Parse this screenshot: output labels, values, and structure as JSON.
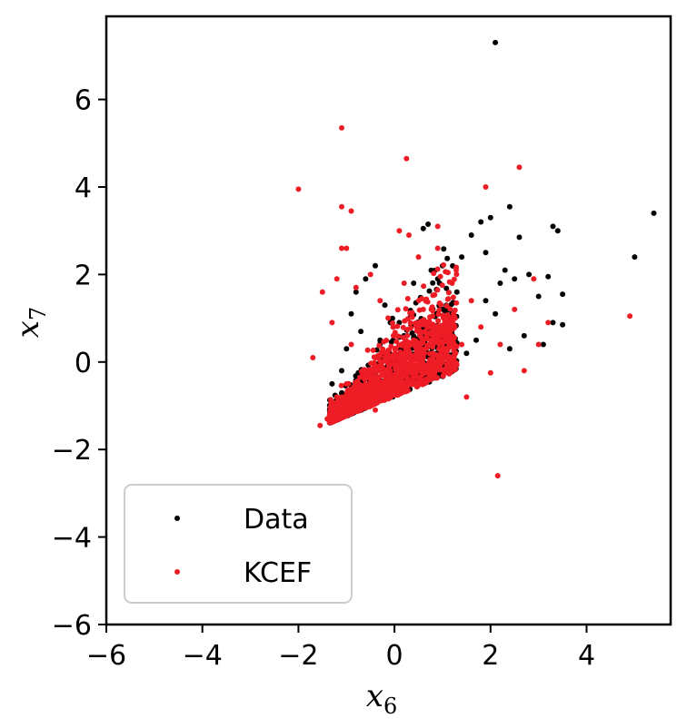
{
  "chart_data": {
    "type": "scatter",
    "title": "",
    "xlabel": "x",
    "xlabel_sub": "6",
    "ylabel": "x",
    "ylabel_sub": "7",
    "xlim": [
      -6,
      5.75
    ],
    "ylim": [
      -6,
      7.9
    ],
    "xticks": [
      -6,
      -4,
      -2,
      0,
      2,
      4
    ],
    "yticks": [
      -6,
      -4,
      -2,
      0,
      2,
      4,
      6
    ],
    "xtick_labels": [
      "−6",
      "−4",
      "−2",
      "0",
      "2",
      "4"
    ],
    "ytick_labels": [
      "−6",
      "−4",
      "−2",
      "0",
      "2",
      "4",
      "6"
    ],
    "grid": false,
    "legend_position": "lower-left",
    "series": [
      {
        "name": "Data",
        "color": "#000000",
        "points": [
          [
            2.1,
            7.3
          ],
          [
            5.4,
            3.4
          ],
          [
            5.0,
            2.4
          ],
          [
            3.4,
            3.0
          ],
          [
            3.3,
            3.1
          ],
          [
            2.4,
            3.55
          ],
          [
            3.5,
            1.55
          ],
          [
            3.5,
            0.85
          ],
          [
            3.2,
            1.95
          ],
          [
            3.1,
            0.4
          ],
          [
            3.3,
            0.9
          ],
          [
            2.6,
            2.85
          ],
          [
            2.8,
            2.0
          ],
          [
            2.2,
            1.8
          ],
          [
            2.0,
            3.3
          ],
          [
            1.8,
            3.2
          ],
          [
            0.7,
            3.15
          ],
          [
            0.6,
            3.05
          ],
          [
            1.6,
            2.9
          ],
          [
            1.4,
            2.4
          ],
          [
            1.0,
            2.2
          ],
          [
            0.9,
            1.9
          ],
          [
            1.9,
            1.4
          ],
          [
            2.1,
            1.1
          ],
          [
            2.4,
            0.3
          ],
          [
            2.7,
            0.6
          ],
          [
            1.2,
            1.0
          ],
          [
            0.8,
            1.2
          ],
          [
            -0.4,
            2.2
          ],
          [
            -0.6,
            1.9
          ],
          [
            -0.8,
            1.6
          ],
          [
            -0.2,
            1.3
          ],
          [
            0.1,
            0.9
          ],
          [
            0.5,
            0.7
          ],
          [
            1.5,
            0.2
          ],
          [
            1.7,
            0.5
          ],
          [
            -1.0,
            0.3
          ],
          [
            -1.3,
            -0.5
          ],
          [
            -1.1,
            -0.2
          ],
          [
            -0.9,
            -0.9
          ],
          [
            -0.5,
            -0.4
          ],
          [
            -0.2,
            -0.2
          ],
          [
            0.3,
            -0.1
          ],
          [
            0.8,
            0.0
          ],
          [
            1.1,
            0.3
          ],
          [
            -0.7,
            0.7
          ],
          [
            -0.3,
            0.5
          ],
          [
            0.2,
            0.3
          ],
          [
            1.3,
            1.6
          ],
          [
            2.5,
            1.9
          ],
          [
            3.0,
            1.5
          ],
          [
            0.4,
            1.8
          ],
          [
            -0.9,
            1.1
          ],
          [
            1.9,
            2.5
          ],
          [
            2.3,
            2.1
          ],
          [
            0.6,
            -0.3
          ],
          [
            1.0,
            -0.1
          ],
          [
            -1.2,
            -1.0
          ],
          [
            -0.6,
            -1.0
          ],
          [
            0.0,
            -0.5
          ]
        ]
      },
      {
        "name": "KCEF",
        "color": "#ee1c25",
        "points": [
          [
            -1.1,
            5.35
          ],
          [
            0.25,
            4.65
          ],
          [
            2.6,
            4.45
          ],
          [
            1.9,
            4.0
          ],
          [
            -2.0,
            3.95
          ],
          [
            -1.1,
            3.55
          ],
          [
            -0.9,
            3.45
          ],
          [
            0.9,
            3.1
          ],
          [
            -1.1,
            2.6
          ],
          [
            -1.0,
            2.6
          ],
          [
            2.9,
            1.9
          ],
          [
            4.9,
            1.05
          ],
          [
            3.2,
            0.9
          ],
          [
            2.15,
            -2.6
          ],
          [
            2.0,
            -0.25
          ],
          [
            1.5,
            -0.8
          ],
          [
            -1.55,
            -1.45
          ],
          [
            -1.4,
            -1.3
          ],
          [
            0.5,
            2.4
          ],
          [
            0.3,
            2.9
          ],
          [
            0.1,
            3.0
          ],
          [
            -0.5,
            2.0
          ],
          [
            -0.8,
            1.7
          ],
          [
            -1.2,
            1.9
          ],
          [
            -0.3,
            1.4
          ],
          [
            0.6,
            1.2
          ],
          [
            1.2,
            1.8
          ],
          [
            1.6,
            1.4
          ],
          [
            1.8,
            0.8
          ],
          [
            2.5,
            1.2
          ],
          [
            2.2,
            0.4
          ],
          [
            0.8,
            0.2
          ],
          [
            0.4,
            0.5
          ],
          [
            -0.2,
            0.1
          ],
          [
            -0.6,
            -0.2
          ],
          [
            -1.0,
            -0.5
          ],
          [
            -1.2,
            -0.8
          ],
          [
            -0.8,
            -1.0
          ],
          [
            -0.4,
            -0.7
          ],
          [
            0.0,
            -0.3
          ],
          [
            1.0,
            0.0
          ],
          [
            1.4,
            0.4
          ],
          [
            -0.9,
            0.4
          ],
          [
            -1.3,
            0.9
          ],
          [
            0.2,
            1.8
          ],
          [
            0.9,
            2.6
          ],
          [
            -0.4,
            -1.1
          ],
          [
            -1.1,
            -1.2
          ],
          [
            2.7,
            -0.2
          ],
          [
            3.0,
            0.4
          ],
          [
            -1.5,
            1.6
          ],
          [
            -1.7,
            0.1
          ]
        ]
      }
    ],
    "cloud": {
      "x_range": [
        -1.35,
        1.3
      ],
      "y_min": -1.4,
      "y_max_base": -0.6,
      "counts": {
        "Data": 700,
        "KCEF": 1400
      }
    }
  }
}
